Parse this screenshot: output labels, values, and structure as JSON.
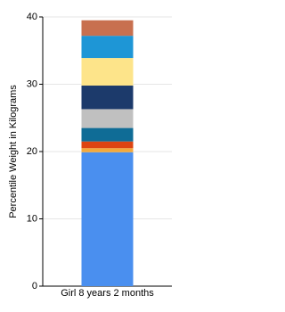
{
  "chart_data": {
    "type": "stacked-bar",
    "y_label": "Percentile Weight in Kilograms",
    "categories": [
      "Girl 8 years 2 months"
    ],
    "series": [
      {
        "color": "#4a8fef",
        "values": [
          19.9
        ]
      },
      {
        "color": "#f3a93c",
        "values": [
          0.6
        ]
      },
      {
        "color": "#dd4412",
        "values": [
          1.0
        ]
      },
      {
        "color": "#0f6c96",
        "values": [
          2.0
        ]
      },
      {
        "color": "#c0c0c0",
        "values": [
          2.8
        ]
      },
      {
        "color": "#1c3a6b",
        "values": [
          3.5
        ]
      },
      {
        "color": "#fde48a",
        "values": [
          4.1
        ]
      },
      {
        "color": "#1e96d6",
        "values": [
          3.3
        ]
      },
      {
        "color": "#c8704f",
        "values": [
          2.3
        ]
      }
    ],
    "ylim": [
      0,
      40
    ],
    "yticks": [
      0,
      10,
      20,
      30,
      40
    ],
    "grid": true
  }
}
